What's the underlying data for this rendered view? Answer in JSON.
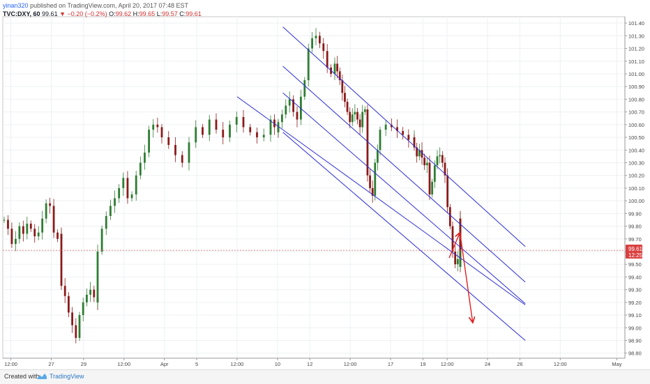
{
  "header": {
    "line1": {
      "author": "yinan320",
      "published_text": "published on TradingView.com, April 20, 2017 07:48 EST"
    },
    "line2": {
      "symbol": "TVC:DXY, 60",
      "last": "99.61",
      "change_arrow": "▼",
      "change": "−0.20 (−0.2%)",
      "o_label": "O:",
      "o_value": "99.62",
      "h_label": "H:",
      "h_value": "99.65",
      "l_label": "L:",
      "l_value": "99.57",
      "c_label": "C:",
      "c_value": "99.61"
    }
  },
  "footer": {
    "created_with": "Created with",
    "brand": "TradingView",
    "icon": "tradingview-logo-icon"
  },
  "price_tag": {
    "price": "99.61",
    "countdown": "12:25"
  },
  "colors": {
    "up": "#2e7d32",
    "down": "#8b1a1a",
    "channel": "#2b2bd6",
    "arrow": "#e02020",
    "price_line": "#e57373",
    "tag": "#d84040"
  },
  "chart_data": {
    "type": "candlestick",
    "title": "",
    "xlabel": "",
    "ylabel": "",
    "ylim": [
      98.76,
      101.45
    ],
    "grid": true,
    "y_ticks": [
      "98.80",
      "98.90",
      "99.00",
      "99.10",
      "99.20",
      "99.30",
      "99.40",
      "99.50",
      "99.60",
      "99.70",
      "99.80",
      "99.90",
      "100.00",
      "100.10",
      "100.20",
      "100.30",
      "100.40",
      "100.50",
      "100.60",
      "100.70",
      "100.80",
      "100.90",
      "101.00",
      "101.10",
      "101.20",
      "101.30",
      "101.40"
    ],
    "x_ticks": [
      "12:00",
      "27",
      "29",
      "12:00",
      "Apr",
      "5",
      "12:00",
      "10",
      "12",
      "12:00",
      "17",
      "19",
      "12:00",
      "24",
      "26",
      "12:00",
      "May"
    ],
    "price_series": {
      "name": "TVC:DXY, 60",
      "values": [
        99.85,
        99.78,
        99.66,
        99.7,
        99.8,
        99.74,
        99.82,
        99.78,
        99.72,
        99.75,
        99.86,
        99.98,
        99.96,
        99.75,
        99.7,
        99.74,
        99.33,
        99.25,
        99.12,
        99.02,
        98.92,
        99.1,
        99.2,
        99.26,
        99.3,
        99.24,
        99.2,
        99.6,
        99.78,
        99.88,
        99.96,
        100.02,
        100.1,
        100.18,
        100.02,
        100.05,
        100.2,
        100.3,
        100.38,
        100.56,
        100.6,
        100.58,
        100.54,
        100.5,
        100.44,
        100.36,
        100.3,
        100.46,
        100.58,
        100.52,
        100.64,
        100.56,
        100.5,
        100.6,
        100.66,
        100.58,
        100.54,
        100.5,
        100.52,
        100.56,
        100.64,
        100.58,
        100.54,
        100.62,
        100.68,
        100.75,
        100.8,
        100.7,
        100.64,
        100.82,
        100.95,
        101.2,
        101.28,
        101.3,
        101.24,
        101.18,
        101.05,
        101.0,
        101.06,
        101.08,
        101.02,
        100.95,
        100.85,
        100.78,
        100.7,
        100.62,
        100.68,
        100.7,
        100.64,
        100.58,
        100.7,
        100.72,
        100.2,
        100.1,
        100.04,
        100.3,
        100.4,
        100.5,
        100.56,
        100.6,
        100.58,
        100.55,
        100.52,
        100.48,
        100.5,
        100.42,
        100.35,
        100.4,
        100.34,
        100.28,
        100.3,
        100.05,
        100.15,
        100.28,
        100.35,
        100.36,
        100.3,
        100.2,
        99.95,
        99.8,
        99.6,
        99.5,
        99.54,
        99.58,
        99.62,
        99.7,
        99.8,
        99.84,
        99.86,
        99.8,
        99.72,
        99.62,
        99.48,
        99.52,
        99.58,
        99.62,
        99.61
      ]
    },
    "channels": [
      {
        "x": [
          "2017-04-10 08:00",
          "2017-04-25 08:00"
        ],
        "y": [
          101.37,
          99.64
        ]
      },
      {
        "x": [
          "2017-04-10 08:00",
          "2017-04-25 08:00"
        ],
        "y": [
          101.06,
          99.36
        ]
      },
      {
        "x": [
          "2017-04-10 08:00",
          "2017-04-25 08:00"
        ],
        "y": [
          100.85,
          99.19
        ]
      },
      {
        "x": [
          "2017-04-07 12:00",
          "2017-04-25 08:00"
        ],
        "y": [
          100.82,
          99.18
        ]
      },
      {
        "x": [
          "2017-04-10 08:00",
          "2017-04-25 08:00"
        ],
        "y": [
          100.54,
          98.9
        ]
      }
    ],
    "arrows": [
      {
        "from": [
          99.55,
          "2017-04-20 15:00"
        ],
        "to": [
          99.75,
          "2017-04-21 07:00"
        ]
      },
      {
        "from": [
          99.75,
          "2017-04-21 07:00"
        ],
        "to": [
          99.04,
          "2017-04-22 02:00"
        ]
      }
    ]
  }
}
